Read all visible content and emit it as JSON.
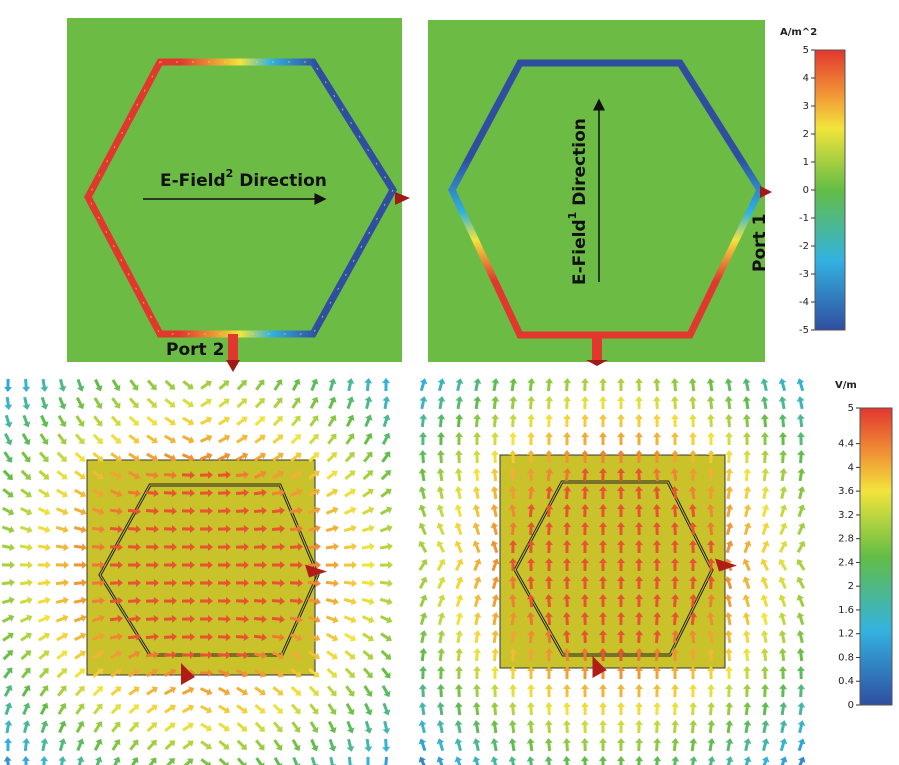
{
  "current_panels": {
    "left": {
      "label_main": "E-Field",
      "label_sup": "2",
      "label_rest": " Direction",
      "port": "Port 2"
    },
    "right": {
      "label_main": "E-Field",
      "label_sup": "1",
      "label_rest": " Direction",
      "port": "Port 1"
    },
    "colorbar": {
      "unit": "A/m^2",
      "ticks": [
        5,
        4,
        3,
        2,
        1,
        0,
        -1,
        -2,
        -3,
        -4,
        -5
      ]
    }
  },
  "field_panels": {
    "colorbar": {
      "unit": "V/m",
      "ticks": [
        5,
        4.4,
        4,
        3.6,
        3.2,
        2.8,
        2.4,
        2,
        1.6,
        1.2,
        0.8,
        0.4,
        0
      ]
    }
  }
}
